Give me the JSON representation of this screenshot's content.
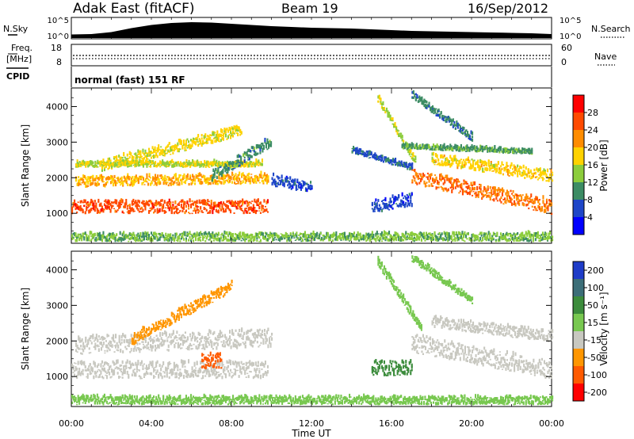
{
  "header": {
    "station": "Adak East (fitACF)",
    "beam": "Beam 19",
    "date": "16/Sep/2012"
  },
  "noise_panel": {
    "left_label": "N.Sky",
    "right_label": "N.Search",
    "left_ticks": [
      "10^5",
      "10^0"
    ],
    "right_ticks": [
      "10^5",
      "10^0"
    ]
  },
  "freq_panel": {
    "left_label_1": "Freq.",
    "left_label_2": "[MHz]",
    "right_label": "Nave",
    "left_ticks": [
      "18",
      "8"
    ],
    "right_ticks": [
      "60",
      "0"
    ]
  },
  "cpid": {
    "label": "CPID",
    "value": "normal (fast) 151 RF"
  },
  "x_axis": {
    "title": "Time UT",
    "ticks": [
      "00:00",
      "04:00",
      "08:00",
      "12:00",
      "16:00",
      "20:00",
      "00:00"
    ]
  },
  "power_colorbar": {
    "title": "Power [dB]",
    "ticks": [
      "28",
      "24",
      "20",
      "16",
      "12",
      "8",
      "4"
    ],
    "colors": [
      "#ff0000",
      "#ff4a00",
      "#ff8c00",
      "#ffd200",
      "#8ccd3c",
      "#3c8c64",
      "#1e46c8",
      "#0000ff"
    ]
  },
  "velocity_colorbar": {
    "title": "Velocity [m s⁻¹]",
    "ticks": [
      "200",
      "100",
      "50",
      "15",
      "-15",
      "-50",
      "-100",
      "-200"
    ],
    "colors": [
      "#1e3cc8",
      "#3c6e78",
      "#3c8c3c",
      "#78c850",
      "#c8c8c0",
      "#ff9600",
      "#ff5a00",
      "#ff0000"
    ]
  },
  "chart_data": [
    {
      "type": "line",
      "title": "",
      "series": [
        {
          "name": "N.Sky",
          "x": [
            0,
            1,
            2,
            3,
            4,
            5,
            6,
            7,
            8,
            9,
            10,
            11,
            12,
            13,
            14,
            15,
            16,
            17,
            18,
            19,
            20,
            21,
            22,
            23,
            24
          ],
          "values": [
            0.9,
            1.0,
            1.5,
            2.5,
            3.3,
            3.8,
            4.0,
            3.9,
            3.6,
            3.3,
            3.0,
            2.8,
            2.6,
            2.5,
            2.4,
            2.2,
            2.0,
            1.8,
            1.7,
            1.6,
            1.5,
            1.4,
            1.3,
            1.2,
            1.0
          ]
        }
      ],
      "ylim": [
        0,
        5
      ],
      "yscale": "log10"
    },
    {
      "type": "line",
      "series": [
        {
          "name": "Freq.",
          "x": [
            0,
            24
          ],
          "values": [
            10.5,
            10.5
          ]
        },
        {
          "name": "Nave",
          "x": [
            0,
            24
          ],
          "values": [
            16,
            16
          ]
        }
      ],
      "ylim": [
        8,
        18
      ]
    },
    {
      "type": "heatmap",
      "xlabel": "Time UT",
      "ylabel": "Slant Range [km]",
      "xlim": [
        0,
        24
      ],
      "ylim": [
        180,
        4500
      ],
      "yticks": [
        1000,
        2000,
        3000,
        4000
      ],
      "colorbar_title": "Power [dB]",
      "colorbar_ticks": [
        28,
        24,
        20,
        16,
        12,
        8,
        4
      ],
      "bands": [
        {
          "t": [
            0.0,
            9.8
          ],
          "r_start": 1150,
          "r_end": 1150,
          "w": 350,
          "v": 26
        },
        {
          "t": [
            0.2,
            9.8
          ],
          "r_start": 1850,
          "r_end": 1950,
          "w": 280,
          "v": 20
        },
        {
          "t": [
            0.2,
            9.5
          ],
          "r_start": 2350,
          "r_end": 2350,
          "w": 150,
          "v": 16
        },
        {
          "t": [
            1.5,
            8.5
          ],
          "r_start": 2300,
          "r_end": 3300,
          "w": 300,
          "v": 17
        },
        {
          "t": [
            7.0,
            10.0
          ],
          "r_start": 2000,
          "r_end": 3000,
          "w": 300,
          "v": 10
        },
        {
          "t": [
            10.0,
            12.0
          ],
          "r_start": 1900,
          "r_end": 1700,
          "w": 300,
          "v": 6
        },
        {
          "t": [
            14.0,
            17.0
          ],
          "r_start": 2750,
          "r_end": 2250,
          "w": 150,
          "v": 7
        },
        {
          "t": [
            15.0,
            17.0
          ],
          "r_start": 1150,
          "r_end": 1350,
          "w": 350,
          "v": 6
        },
        {
          "t": [
            15.3,
            17.2
          ],
          "r_start": 4200,
          "r_end": 2400,
          "w": 200,
          "v": 15
        },
        {
          "t": [
            17.0,
            24.0
          ],
          "r_start": 2000,
          "r_end": 1150,
          "w": 400,
          "v": 24
        },
        {
          "t": [
            18.0,
            24.0
          ],
          "r_start": 2500,
          "r_end": 2000,
          "w": 300,
          "v": 18
        },
        {
          "t": [
            16.5,
            23.0
          ],
          "r_start": 2850,
          "r_end": 2700,
          "w": 120,
          "v": 11
        },
        {
          "t": [
            17.0,
            20.0
          ],
          "r_start": 4300,
          "r_end": 3100,
          "w": 200,
          "v": 9
        },
        {
          "t": [
            0.0,
            24.0
          ],
          "r_start": 300,
          "r_end": 300,
          "w": 220,
          "v": 13
        }
      ]
    },
    {
      "type": "heatmap",
      "xlabel": "Time UT",
      "ylabel": "Slant Range [km]",
      "xlim": [
        0,
        24
      ],
      "ylim": [
        180,
        4500
      ],
      "yticks": [
        1000,
        2000,
        3000,
        4000
      ],
      "colorbar_title": "Velocity [m s-1]",
      "colorbar_ticks": [
        200,
        100,
        50,
        15,
        -15,
        -50,
        -100,
        -200
      ],
      "bands": [
        {
          "t": [
            0.0,
            9.8
          ],
          "r_start": 1150,
          "r_end": 1150,
          "w": 450,
          "v": 0
        },
        {
          "t": [
            0.2,
            10.0
          ],
          "r_start": 1850,
          "r_end": 2050,
          "w": 500,
          "v": 0
        },
        {
          "t": [
            3.0,
            8.0
          ],
          "r_start": 2000,
          "r_end": 3500,
          "w": 300,
          "v": -40
        },
        {
          "t": [
            6.5,
            7.5
          ],
          "r_start": 1400,
          "r_end": 1400,
          "w": 400,
          "v": -60
        },
        {
          "t": [
            15.0,
            17.0
          ],
          "r_start": 1200,
          "r_end": 1200,
          "w": 400,
          "v": 80
        },
        {
          "t": [
            15.3,
            17.5
          ],
          "r_start": 4200,
          "r_end": 2300,
          "w": 250,
          "v": 40
        },
        {
          "t": [
            17.0,
            24.0
          ],
          "r_start": 1900,
          "r_end": 1150,
          "w": 500,
          "v": 0
        },
        {
          "t": [
            18.0,
            24.0
          ],
          "r_start": 2500,
          "r_end": 2100,
          "w": 300,
          "v": 5
        },
        {
          "t": [
            17.0,
            20.0
          ],
          "r_start": 4300,
          "r_end": 3100,
          "w": 200,
          "v": 30
        },
        {
          "t": [
            0.0,
            24.0
          ],
          "r_start": 300,
          "r_end": 300,
          "w": 220,
          "v": 30
        }
      ]
    }
  ]
}
